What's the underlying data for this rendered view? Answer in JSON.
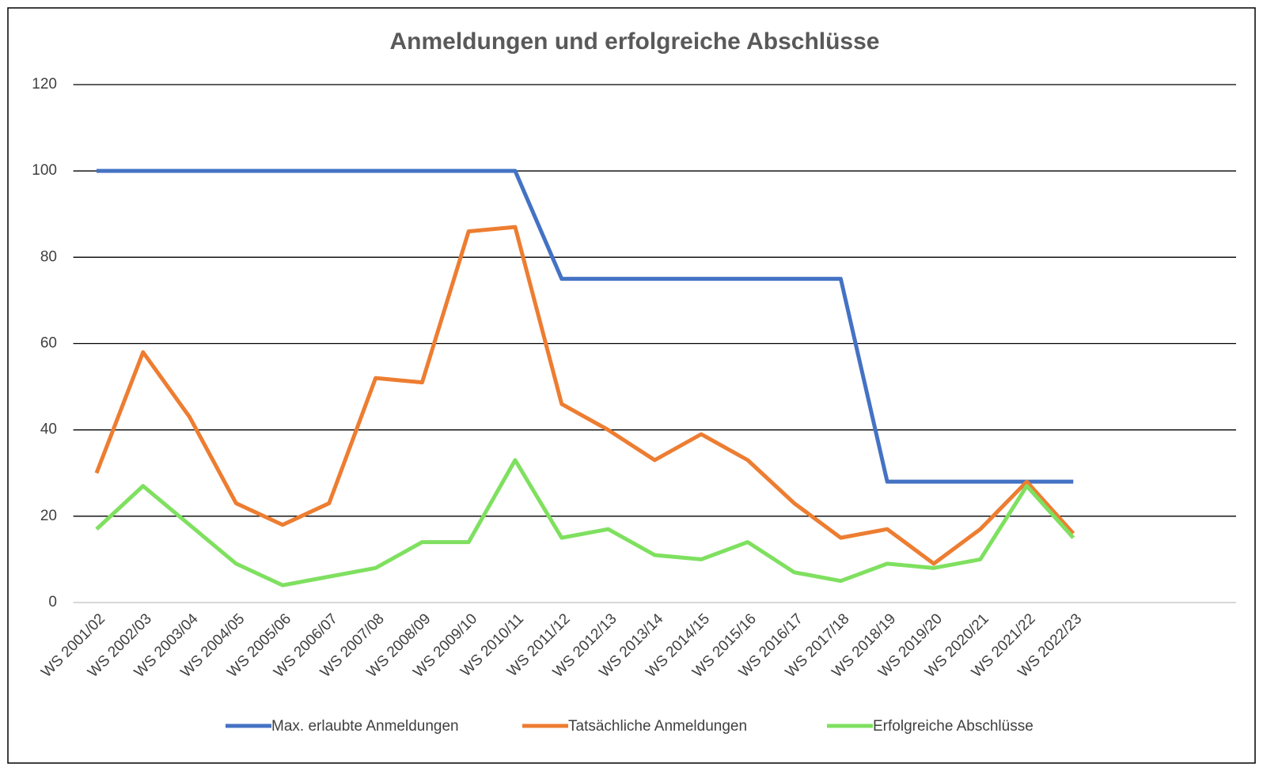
{
  "chart_data": {
    "type": "line",
    "title": "Anmeldungen und erfolgreiche Abschlüsse",
    "categories": [
      "WS 2001/02",
      "WS 2002/03",
      "WS 2003/04",
      "WS 2004/05",
      "WS 2005/06",
      "WS 2006/07",
      "WS 2007/08",
      "WS 2008/09",
      "WS 2009/10",
      "WS 2010/11",
      "WS 2011/12",
      "WS 2012/13",
      "WS 2013/14",
      "WS 2014/15",
      "WS 2015/16",
      "WS 2016/17",
      "WS 2017/18",
      "WS 2018/19",
      "WS 2019/20",
      "WS 2020/21",
      "WS 2021/22",
      "WS 2022/23",
      null,
      null,
      null
    ],
    "series": [
      {
        "name": "Max. erlaubte Anmeldungen",
        "color": "#4472c4",
        "values": [
          100,
          100,
          100,
          100,
          100,
          100,
          100,
          100,
          100,
          100,
          75,
          75,
          75,
          75,
          75,
          75,
          75,
          28,
          28,
          28,
          28,
          28,
          null,
          null,
          null
        ]
      },
      {
        "name": "Tatsächliche Anmeldungen",
        "color": "#ed7d31",
        "values": [
          30,
          58,
          43,
          23,
          18,
          23,
          52,
          51,
          86,
          87,
          46,
          40,
          33,
          39,
          33,
          23,
          15,
          17,
          9,
          17,
          28,
          16,
          null,
          null,
          null
        ]
      },
      {
        "name": "Erfolgreiche Abschlüsse",
        "color": "#7fe060",
        "values": [
          17,
          27,
          18,
          9,
          4,
          6,
          8,
          14,
          14,
          33,
          15,
          17,
          11,
          10,
          14,
          7,
          5,
          9,
          8,
          10,
          27,
          15,
          null,
          null,
          null
        ]
      }
    ],
    "ylim": [
      0,
      120
    ],
    "yticks": [
      0,
      20,
      40,
      60,
      80,
      100,
      120
    ],
    "grid": true,
    "legend": "bottom"
  }
}
